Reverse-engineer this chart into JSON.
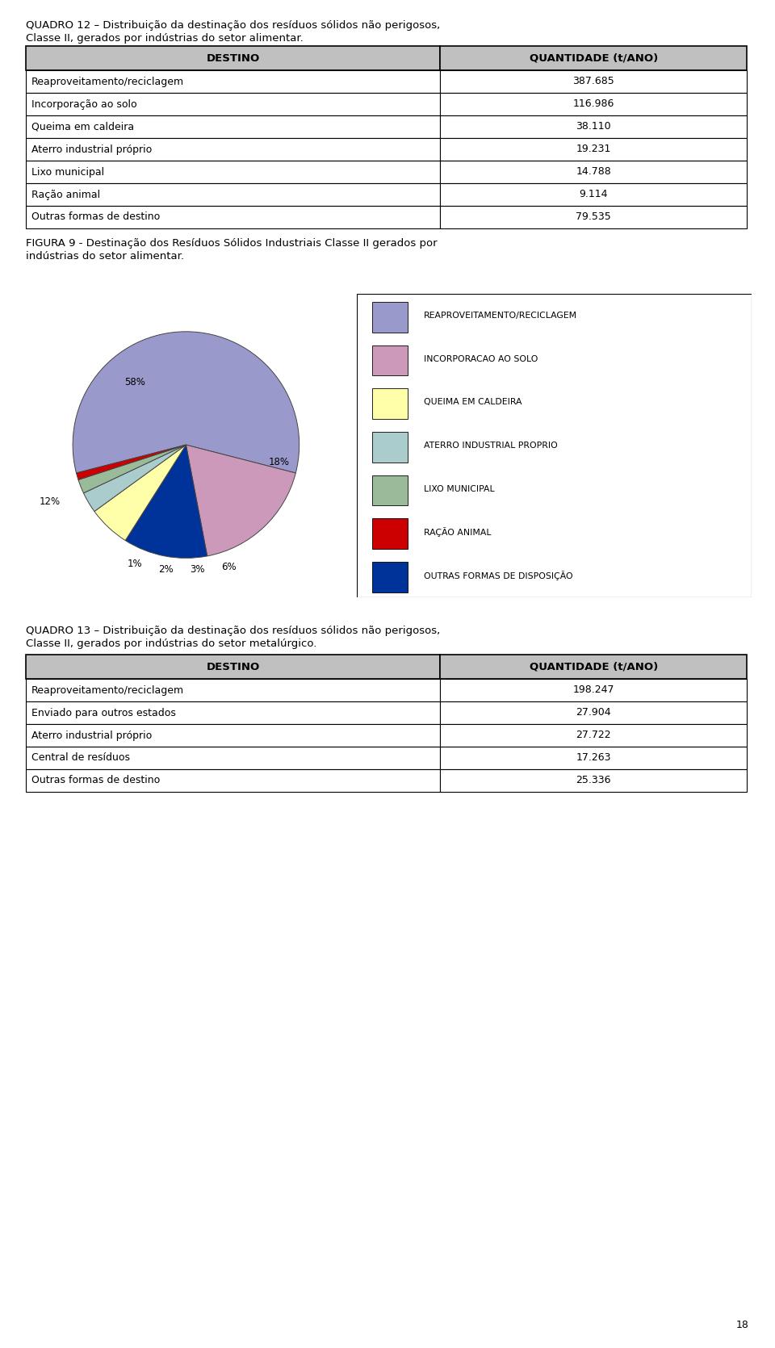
{
  "quadro12_line1": "QUADRO 12 – Distribuição da destinação dos resíduos sólidos não perigosos,",
  "quadro12_line2": "Classe II, gerados por indústrias do setor alimentar.",
  "quadro12_headers": [
    "DESTINO",
    "QUANTIDADE (t/ANO)"
  ],
  "quadro12_rows": [
    [
      "Reaproveitamento/reciclagem",
      "387.685"
    ],
    [
      "Incorporação ao solo",
      "116.986"
    ],
    [
      "Queima em caldeira",
      "38.110"
    ],
    [
      "Aterro industrial próprio",
      "19.231"
    ],
    [
      "Lixo municipal",
      "14.788"
    ],
    [
      "Ração animal",
      "9.114"
    ],
    [
      "Outras formas de destino",
      "79.535"
    ]
  ],
  "figura9_line1": "FIGURA 9 - Destinação dos Resíduos Sólidos Industriais Classe II gerados por",
  "figura9_line2": "indústrias do setor alimentar.",
  "pie_values": [
    58,
    18,
    12,
    6,
    3,
    2,
    1
  ],
  "pie_labels": [
    "58%",
    "18%",
    "12%",
    "6%",
    "3%",
    "2%",
    "1%"
  ],
  "pie_colors": [
    "#9999CC",
    "#CC99BB",
    "#003399",
    "#FFFFAA",
    "#AACCCC",
    "#99BB99",
    "#CC0000"
  ],
  "legend_labels": [
    "REAPROVEITAMENTO/RECICLAGEM",
    "INCORPORACAO AO SOLO",
    "QUEIMA EM CALDEIRA",
    "ATERRO INDUSTRIAL PROPRIO",
    "LIXO MUNICIPAL",
    "RAÇÃO ANIMAL",
    "OUTRAS FORMAS DE DISPOSIÇÃO"
  ],
  "legend_colors": [
    "#9999CC",
    "#CC99BB",
    "#FFFFAA",
    "#AACCCC",
    "#99BB99",
    "#CC0000",
    "#003399"
  ],
  "quadro13_line1": "QUADRO 13 – Distribuição da destinação dos resíduos sólidos não perigosos,",
  "quadro13_line2": "Classe II, gerados por indústrias do setor metalúrgico.",
  "quadro13_headers": [
    "DESTINO",
    "QUANTIDADE (t/ANO)"
  ],
  "quadro13_rows": [
    [
      "Reaproveitamento/reciclagem",
      "198.247"
    ],
    [
      "Enviado para outros estados",
      "27.904"
    ],
    [
      "Aterro industrial próprio",
      "27.722"
    ],
    [
      "Central de resíduos",
      "17.263"
    ],
    [
      "Outras formas de destino",
      "25.336"
    ]
  ],
  "page_number": "18",
  "bg_color": "#ffffff",
  "table_header_color": "#C0C0C0",
  "table_border_color": "#000000",
  "text_color": "#000000"
}
